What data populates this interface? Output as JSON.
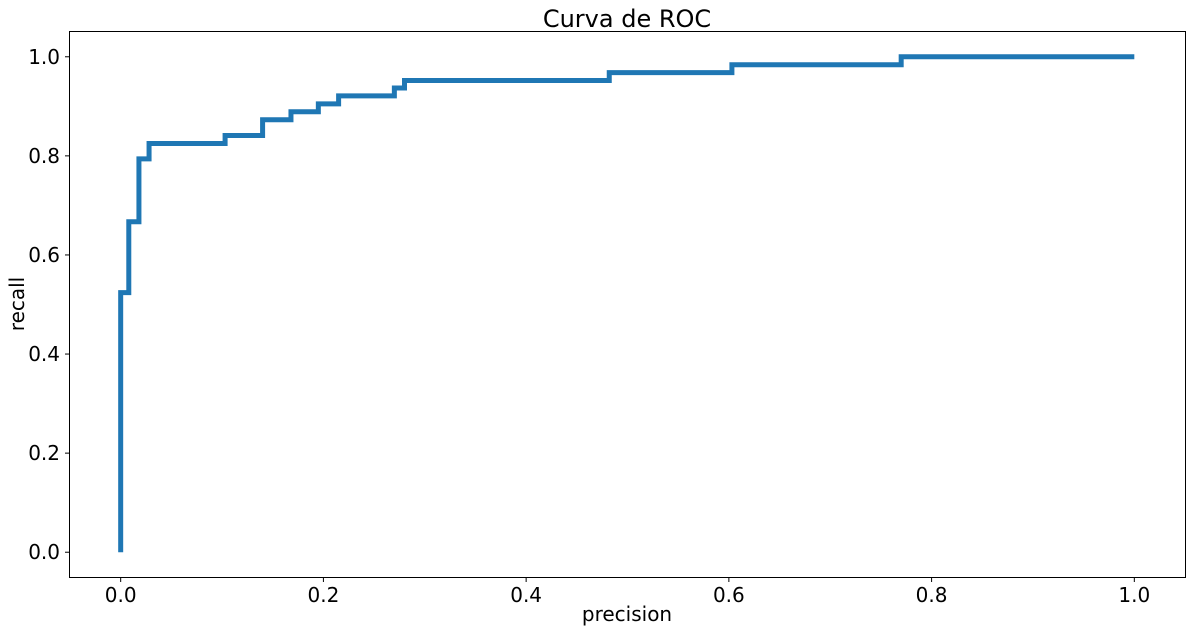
{
  "chart_data": {
    "type": "line",
    "title": "Curva de ROC",
    "xlabel": "precision",
    "ylabel": "recall",
    "xlim": [
      -0.05,
      1.05
    ],
    "ylim": [
      -0.05,
      1.05
    ],
    "xticks": [
      0.0,
      0.2,
      0.4,
      0.6,
      0.8,
      1.0
    ],
    "xtick_labels": [
      "0.0",
      "0.2",
      "0.4",
      "0.6",
      "0.8",
      "1.0"
    ],
    "yticks": [
      0.0,
      0.2,
      0.4,
      0.6,
      0.8,
      1.0
    ],
    "ytick_labels": [
      "0.0",
      "0.2",
      "0.4",
      "0.6",
      "0.8",
      "1.0"
    ],
    "grid": false,
    "line_color": "#1f77b4",
    "series": [
      {
        "x": [
          0.0,
          0.0,
          0.008,
          0.008,
          0.018,
          0.018,
          0.028,
          0.028,
          0.103,
          0.103,
          0.14,
          0.14,
          0.168,
          0.168,
          0.195,
          0.195,
          0.215,
          0.215,
          0.27,
          0.27,
          0.28,
          0.28,
          0.482,
          0.482,
          0.603,
          0.603,
          0.77,
          0.77,
          1.0
        ],
        "y": [
          0.0,
          0.524,
          0.524,
          0.667,
          0.667,
          0.794,
          0.794,
          0.825,
          0.825,
          0.841,
          0.841,
          0.873,
          0.873,
          0.889,
          0.889,
          0.905,
          0.905,
          0.921,
          0.921,
          0.937,
          0.937,
          0.952,
          0.952,
          0.968,
          0.968,
          0.984,
          0.984,
          1.0,
          1.0
        ]
      }
    ]
  }
}
